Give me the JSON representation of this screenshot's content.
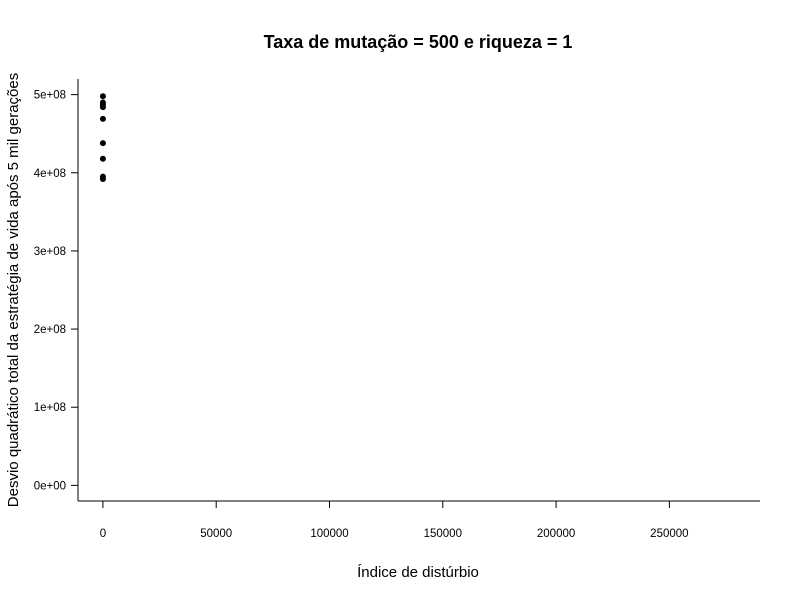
{
  "chart_data": {
    "type": "scatter",
    "title": "Taxa de mutação = 500 e riqueza = 1",
    "xlabel": "Índice de distúrbio",
    "ylabel": "Desvio quadrático total da estratégia de vida após 5 mil gerações",
    "xlim": [
      -11000,
      290000
    ],
    "ylim": [
      -20000000,
      520000000
    ],
    "x_ticks": [
      0,
      50000,
      100000,
      150000,
      200000,
      250000
    ],
    "x_tick_labels": [
      "0",
      "50000",
      "100000",
      "150000",
      "200000",
      "250000"
    ],
    "y_ticks": [
      0,
      100000000,
      200000000,
      300000000,
      400000000,
      500000000
    ],
    "y_tick_labels": [
      "0e+00",
      "1e+08",
      "2e+08",
      "3e+08",
      "4e+08",
      "5e+08"
    ],
    "grid": false,
    "legend": "none",
    "marker_color": "#000000",
    "points": [
      {
        "x": 0,
        "y": 498000000
      },
      {
        "x": 0,
        "y": 490000000
      },
      {
        "x": 0,
        "y": 487000000
      },
      {
        "x": 0,
        "y": 484000000
      },
      {
        "x": 0,
        "y": 469000000
      },
      {
        "x": 0,
        "y": 438000000
      },
      {
        "x": 0,
        "y": 418000000
      },
      {
        "x": 0,
        "y": 395000000
      },
      {
        "x": 0,
        "y": 392000000
      }
    ]
  }
}
